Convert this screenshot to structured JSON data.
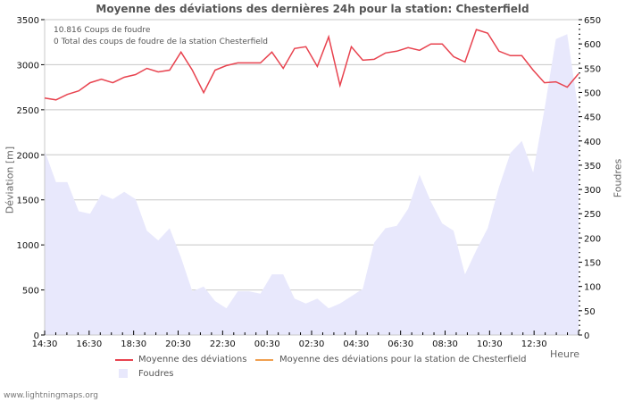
{
  "title": "Moyenne des déviations des dernières 24h pour la station: Chesterfield",
  "info": {
    "line1": "10.816  Coups de foudre",
    "line2": "0 Total des coups de foudre de la station Chesterfield"
  },
  "left_axis_label": "Déviation  [m]",
  "right_axis_label": "Foudres",
  "x_axis_label": "Heure",
  "legend": {
    "item1": "Moyenne des déviations",
    "item2": "Moyenne des déviations pour la station de Chesterfield",
    "item3": "Foudres"
  },
  "footer": "www.lightningmaps.org",
  "colors": {
    "line": "#e8434f",
    "station_line": "#f0a050",
    "area": "#e8e8fc",
    "grid": "#c8c8c8"
  },
  "chart_data": {
    "type": "line",
    "title": "Moyenne des déviations des dernières 24h pour la station: Chesterfield",
    "xlabel": "Heure",
    "ylabel": "Déviation [m]",
    "y2label": "Foudres",
    "ylim": [
      0,
      3500
    ],
    "y2lim": [
      0,
      650
    ],
    "yticks": [
      0,
      500,
      1000,
      1500,
      2000,
      2500,
      3000,
      3500
    ],
    "y2ticks": [
      0,
      50,
      100,
      150,
      200,
      250,
      300,
      350,
      400,
      450,
      500,
      550,
      600,
      650
    ],
    "xticks": [
      "14:30",
      "16:30",
      "18:30",
      "20:30",
      "22:30",
      "00:30",
      "02:30",
      "04:30",
      "06:30",
      "08:30",
      "10:30",
      "12:30"
    ],
    "grid": true,
    "legend_position": "bottom",
    "series": [
      {
        "name": "Moyenne des déviations",
        "axis": "left",
        "values": [
          2630,
          2610,
          2670,
          2710,
          2800,
          2840,
          2800,
          2860,
          2890,
          2960,
          2920,
          2940,
          3140,
          2940,
          2690,
          2940,
          2990,
          3020,
          3020,
          3020,
          3140,
          2960,
          3180,
          3200,
          2980,
          3310,
          2770,
          3200,
          3050,
          3060,
          3130,
          3150,
          3190,
          3160,
          3230,
          3230,
          3090,
          3030,
          3390,
          3350,
          3150,
          3100,
          3100,
          2940,
          2800,
          2810,
          2750,
          2900
        ]
      },
      {
        "name": "Moyenne des déviations pour la station de Chesterfield",
        "axis": "left",
        "values": []
      },
      {
        "name": "Foudres",
        "axis": "right",
        "type": "area",
        "values": [
          380,
          315,
          315,
          255,
          250,
          290,
          280,
          295,
          280,
          215,
          195,
          220,
          160,
          90,
          100,
          70,
          55,
          90,
          90,
          85,
          125,
          125,
          75,
          65,
          75,
          55,
          65,
          80,
          95,
          190,
          220,
          225,
          260,
          330,
          275,
          230,
          215,
          125,
          175,
          220,
          305,
          375,
          400,
          335,
          465,
          610,
          620,
          460
        ]
      }
    ]
  }
}
